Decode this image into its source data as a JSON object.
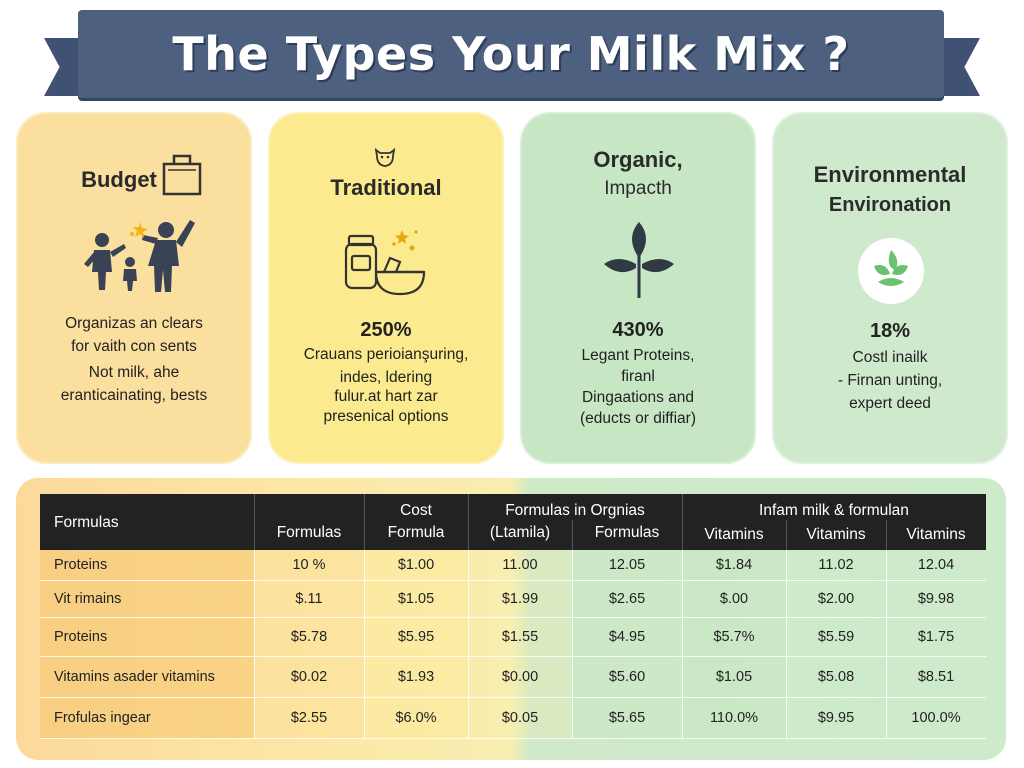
{
  "header": {
    "title": "The Types Your Milk Mix ?"
  },
  "cards": [
    {
      "title": "Budget",
      "subtitle": "",
      "percent": "",
      "lines": [
        "Organizas an clears",
        "for vaith con sents",
        "Not milk, ahe",
        "eranticainating, bests"
      ],
      "icon": "family-icon",
      "background": "#fbdf9f"
    },
    {
      "title": "Traditional",
      "subtitle": "",
      "percent": "250%",
      "lines": [
        "Crauans perioianşuring,",
        "indes, ldering",
        "fulur.at hart zar",
        "presenical options"
      ],
      "icon": "jars-icon",
      "background": "#fbeb8e"
    },
    {
      "title": "Organic,",
      "subtitle": "Impacth",
      "percent": "430%",
      "lines": [
        "Legant Proteins,",
        "firanl",
        "Dingaations and",
        "(educts or diffiar)"
      ],
      "icon": "leaf-icon",
      "background": "#c7e6c3"
    },
    {
      "title": "Environmental",
      "subtitle": "Environation",
      "percent": "18%",
      "lines": [
        "Costl inailk",
        "- Firnan unting,",
        "expert deed"
      ],
      "icon": "eco-badge-icon",
      "background": "#cfe9cd"
    }
  ],
  "table": {
    "headers": {
      "col0": "Formulas",
      "col1": "Formulas",
      "col2_top": "Cost",
      "col2": "Formula",
      "group1_top": "Formulas in Orgnias",
      "col3": "(Ltamila)",
      "col4": "Formulas",
      "group2_top": "Infam milk & formulan",
      "col5": "Vitamins",
      "col6": "Vitamins",
      "col7": "Vitamins"
    },
    "rows": [
      [
        "Proteins",
        "10 %",
        "$1.00",
        "11.00",
        "12.05",
        "$1.84",
        "11.02",
        "12.04"
      ],
      [
        "Vit rimains",
        "$.11",
        "$1.05",
        "$1.99",
        "$2.65",
        "$.00",
        "$2.00",
        "$9.98"
      ],
      [
        "Proteins",
        "$5.78",
        "$5.95",
        "$1.55",
        "$4.95",
        "$5.7%",
        "$5.59",
        "$1.75"
      ],
      [
        "Vitamins asader vitamins",
        "$0.02",
        "$1.93",
        "$0.00",
        "$5.60",
        "$1.05",
        "$5.08",
        "$8.51"
      ],
      [
        "Frofulas ingear",
        "$2.55",
        "$6.0%",
        "$0.05",
        "$5.65",
        "110.0%",
        "$9.95",
        "100.0%"
      ]
    ]
  },
  "colors": {
    "banner": "#4d6080",
    "header_row": "#222222",
    "budget": "#fbdf9f",
    "traditional": "#fbeb8e",
    "organic": "#c7e6c3",
    "environmental": "#cfe9cd"
  }
}
